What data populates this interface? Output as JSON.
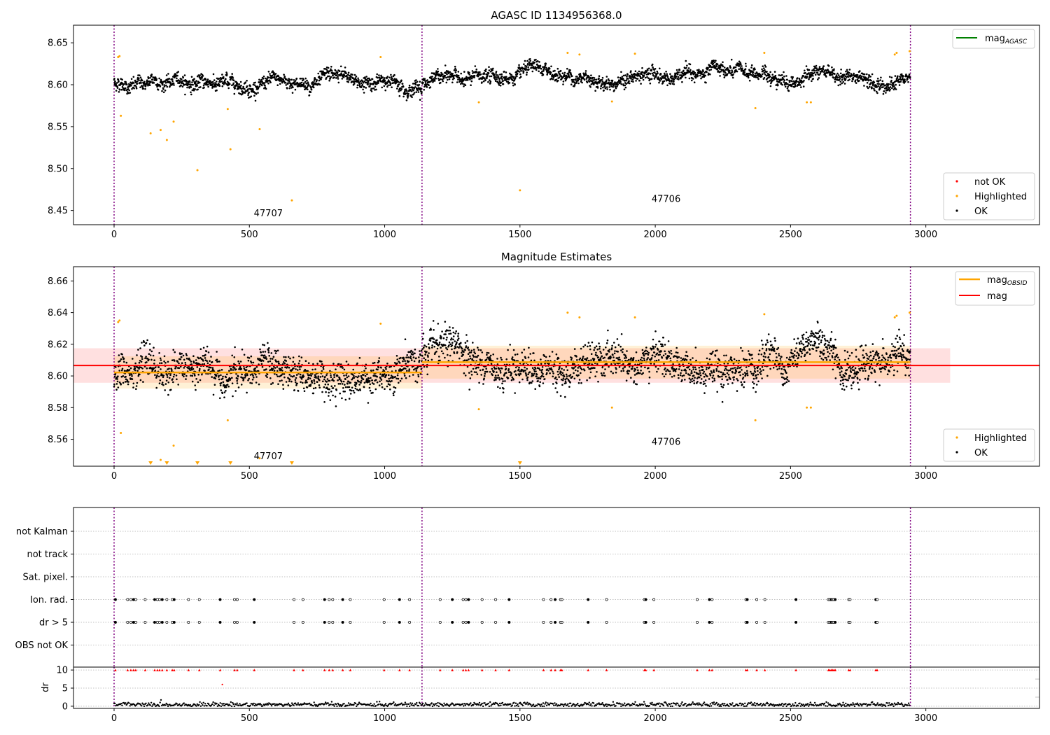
{
  "chart_data": [
    {
      "type": "scatter",
      "title": "AGASC ID 1134956368.0",
      "xlabel": "",
      "ylabel": "",
      "xlim": [
        -150,
        3420
      ],
      "ylim": [
        8.433,
        8.671
      ],
      "x_ticks": [
        "0",
        "500",
        "1000",
        "1500",
        "2000",
        "2500",
        "3000"
      ],
      "y_ticks": [
        "8.45",
        "8.50",
        "8.55",
        "8.60",
        "8.65"
      ],
      "legend_lines": [
        {
          "label": "mag_AGASC",
          "base": "mag",
          "sub": "AGASC",
          "color": "#008000"
        }
      ],
      "legend_lines_position": "top-right",
      "legend_points": [
        {
          "label": "not OK",
          "color": "#ff0000"
        },
        {
          "label": "Highlighted",
          "color": "#ffa500"
        },
        {
          "label": "OK",
          "color": "#000000"
        }
      ],
      "legend_points_position": "bottom-right",
      "agasc_mag": 8.6145,
      "obsid_boundaries": [
        0,
        1138,
        2943
      ],
      "obsid_labels": [
        {
          "text": "47707",
          "x": 570,
          "y": 8.443
        },
        {
          "text": "47706",
          "x": 2040,
          "y": 8.46
        }
      ],
      "ok_series": {
        "name": "OK",
        "segments": [
          {
            "x_start": 0,
            "x_end": 1138,
            "center": 8.6025,
            "spread": 0.007
          },
          {
            "x_start": 1138,
            "x_end": 2943,
            "center": 8.6085,
            "spread": 0.007
          }
        ],
        "approx_points": 2940
      },
      "highlighted_points": [
        [
          15,
          8.633
        ],
        [
          20,
          8.634
        ],
        [
          25,
          8.563
        ],
        [
          135,
          8.542
        ],
        [
          172,
          8.546
        ],
        [
          195,
          8.534
        ],
        [
          220,
          8.556
        ],
        [
          308,
          8.498
        ],
        [
          420,
          8.571
        ],
        [
          430,
          8.523
        ],
        [
          538,
          8.547
        ],
        [
          657,
          8.462
        ],
        [
          985,
          8.633
        ],
        [
          1348,
          8.579
        ],
        [
          1500,
          8.474
        ],
        [
          1676,
          8.638
        ],
        [
          1720,
          8.636
        ],
        [
          1840,
          8.58
        ],
        [
          1925,
          8.637
        ],
        [
          2370,
          8.572
        ],
        [
          2403,
          8.638
        ],
        [
          2560,
          8.579
        ],
        [
          2575,
          8.579
        ],
        [
          2885,
          8.636
        ],
        [
          2892,
          8.638
        ],
        [
          2940,
          8.64
        ]
      ]
    },
    {
      "type": "scatter",
      "title": "Magnitude Estimates",
      "xlabel": "",
      "ylabel": "",
      "xlim": [
        -150,
        3420
      ],
      "ylim": [
        8.543,
        8.669
      ],
      "x_ticks": [
        "0",
        "500",
        "1000",
        "1500",
        "2000",
        "2500",
        "3000"
      ],
      "y_ticks": [
        "8.56",
        "8.58",
        "8.60",
        "8.62",
        "8.64",
        "8.66"
      ],
      "legend_lines": [
        {
          "label": "mag_OBSID",
          "base": "mag",
          "sub": "OBSID",
          "color": "#ffa500"
        },
        {
          "label": "mag",
          "base": "mag",
          "sub": "",
          "color": "#ff0000"
        }
      ],
      "legend_lines_position": "top-right",
      "legend_points": [
        {
          "label": "Highlighted",
          "color": "#ffa500"
        },
        {
          "label": "OK",
          "color": "#000000"
        }
      ],
      "legend_points_position": "bottom-right",
      "mag": 8.6066,
      "mag_band": [
        8.5957,
        8.6175
      ],
      "mag_band_x": [
        -150,
        3090
      ],
      "mag_obsid": [
        {
          "x_start": 0,
          "x_end": 1138,
          "mag": 8.6022,
          "band": [
            8.592,
            8.6124
          ]
        },
        {
          "x_start": 1138,
          "x_end": 2943,
          "mag": 8.6087,
          "band": [
            8.5983,
            8.6191
          ]
        }
      ],
      "obsid_boundaries": [
        0,
        1138,
        2943
      ],
      "obsid_labels": [
        {
          "text": "47707",
          "x": 570,
          "y": 8.5475
        },
        {
          "text": "47706",
          "x": 2040,
          "y": 8.5565
        }
      ],
      "ok_series": {
        "name": "OK",
        "segments": [
          {
            "x_start": 0,
            "x_end": 1138,
            "center": 8.6022,
            "spread": 0.0095
          },
          {
            "x_start": 1138,
            "x_end": 2943,
            "center": 8.6087,
            "spread": 0.0095
          }
        ],
        "approx_points": 2940
      },
      "highlighted_points": [
        [
          15,
          8.634
        ],
        [
          20,
          8.635
        ],
        [
          25,
          8.564
        ],
        [
          220,
          8.556
        ],
        [
          172,
          8.547
        ],
        [
          420,
          8.572
        ],
        [
          538,
          8.548
        ],
        [
          985,
          8.633
        ],
        [
          1348,
          8.579
        ],
        [
          1676,
          8.64
        ],
        [
          1720,
          8.637
        ],
        [
          1840,
          8.58
        ],
        [
          1925,
          8.637
        ],
        [
          2370,
          8.572
        ],
        [
          2403,
          8.639
        ],
        [
          2560,
          8.58
        ],
        [
          2575,
          8.58
        ],
        [
          2885,
          8.637
        ],
        [
          2892,
          8.638
        ],
        [
          2940,
          8.64
        ]
      ],
      "highlighted_out_of_range_x": [
        135,
        195,
        308,
        430,
        657,
        1500
      ]
    },
    {
      "type": "scatter",
      "title": "",
      "xlabel": "",
      "ylabel": "",
      "xlim": [
        -150,
        3420
      ],
      "flag_categories": [
        "not Kalman",
        "not track",
        "Sat. pixel.",
        "Ion. rad.",
        "dr > 5",
        "OBS not OK"
      ],
      "flag_x": [
        5,
        50,
        62,
        72,
        80,
        115,
        150,
        160,
        168,
        178,
        195,
        215,
        222,
        275,
        315,
        392,
        445,
        455,
        518,
        665,
        698,
        778,
        795,
        808,
        845,
        873,
        998,
        1055,
        1092,
        1205,
        1250,
        1290,
        1300,
        1310,
        1360,
        1410,
        1460,
        1587,
        1615,
        1630,
        1650,
        1655,
        1752,
        1820,
        1960,
        1965,
        1995,
        2155,
        2200,
        2210,
        2335,
        2340,
        2375,
        2405,
        2520,
        2640,
        2645,
        2650,
        2655,
        2660,
        2665,
        2715,
        2720,
        2815,
        2820
      ],
      "obsid_boundaries": [
        0,
        1138,
        2943
      ]
    },
    {
      "type": "scatter",
      "title": "",
      "xlabel": "",
      "ylabel": "dr",
      "xlim": [
        -150,
        3420
      ],
      "ylim": [
        -0.6,
        10.8
      ],
      "x_ticks": [
        "0",
        "500",
        "1000",
        "1500",
        "2000",
        "2500",
        "3000"
      ],
      "y_ticks": [
        "0",
        "5",
        "10"
      ],
      "dr_baseline": {
        "center": 0.45,
        "spread": 0.3,
        "x_start": 0,
        "x_end": 2943
      },
      "dr_capped_value": 10,
      "dr_extra_points": [
        [
          400,
          6
        ]
      ],
      "obsid_boundaries": [
        0,
        1138,
        2943
      ]
    }
  ]
}
